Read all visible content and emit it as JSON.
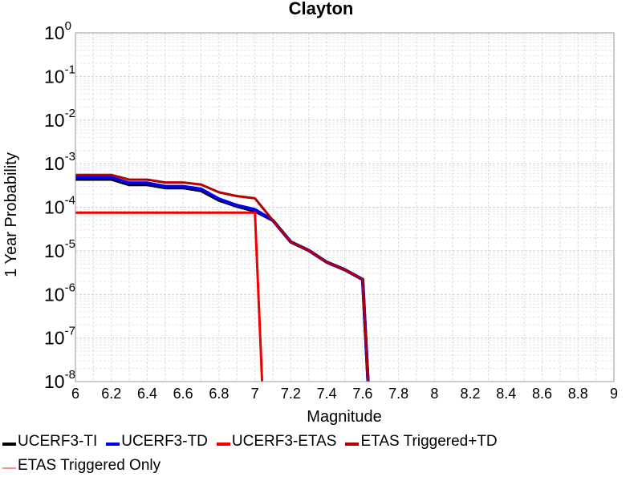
{
  "chart_data": {
    "type": "line",
    "title": "Clayton",
    "xlabel": "Magnitude",
    "ylabel": "1 Year Probability",
    "xlim": [
      6,
      9
    ],
    "ylim": [
      1e-08,
      1
    ],
    "yscale": "log",
    "grid": true,
    "legend_position": "bottom",
    "x_ticks": [
      "6",
      "6.2",
      "6.4",
      "6.6",
      "6.8",
      "7",
      "7.2",
      "7.4",
      "7.6",
      "7.8",
      "8",
      "8.2",
      "8.4",
      "8.6",
      "8.8",
      "9"
    ],
    "y_ticks": [
      {
        "value": 1.0,
        "base": "10",
        "exp": "0"
      },
      {
        "value": 0.1,
        "base": "10",
        "exp": "-1"
      },
      {
        "value": 0.01,
        "base": "10",
        "exp": "-2"
      },
      {
        "value": 0.001,
        "base": "10",
        "exp": "-3"
      },
      {
        "value": 0.0001,
        "base": "10",
        "exp": "-4"
      },
      {
        "value": 1e-05,
        "base": "10",
        "exp": "-5"
      },
      {
        "value": 1e-06,
        "base": "10",
        "exp": "-6"
      },
      {
        "value": 1e-07,
        "base": "10",
        "exp": "-7"
      },
      {
        "value": 1e-08,
        "base": "10",
        "exp": "-8"
      }
    ],
    "series": [
      {
        "name": "UCERF3-TI",
        "color": "#000000",
        "width": 4,
        "x": [
          6.0,
          6.1,
          6.2,
          6.3,
          6.4,
          6.5,
          6.6,
          6.7,
          6.8,
          6.9,
          7.0,
          7.1,
          7.2,
          7.3,
          7.4,
          7.5,
          7.6,
          7.63
        ],
        "y": [
          0.00044,
          0.00044,
          0.00044,
          0.00033,
          0.00033,
          0.00028,
          0.00028,
          0.00024,
          0.000145,
          0.000105,
          8.2e-05,
          5e-05,
          1.6e-05,
          1.02e-05,
          5.5e-06,
          3.7e-06,
          2.2e-06,
          1e-08
        ]
      },
      {
        "name": "UCERF3-TD",
        "color": "#0000ee",
        "width": 4,
        "x": [
          6.0,
          6.1,
          6.2,
          6.3,
          6.4,
          6.5,
          6.6,
          6.7,
          6.8,
          6.9,
          7.0,
          7.1,
          7.2,
          7.3,
          7.4,
          7.5,
          7.6,
          7.63
        ],
        "y": [
          0.00048,
          0.00048,
          0.00048,
          0.00036,
          0.00036,
          0.0003,
          0.0003,
          0.00026,
          0.000155,
          0.00011,
          8.8e-05,
          5e-05,
          1.6e-05,
          1.02e-05,
          5.5e-06,
          3.7e-06,
          2.2e-06,
          1e-08
        ]
      },
      {
        "name": "UCERF3-ETAS",
        "color": "#ee0000",
        "width": 3,
        "x": [
          6.0,
          6.1,
          6.2,
          6.3,
          6.4,
          6.5,
          6.6,
          6.7,
          6.8,
          6.9,
          7.0,
          7.04
        ],
        "y": [
          7.5e-05,
          7.5e-05,
          7.5e-05,
          7.5e-05,
          7.5e-05,
          7.5e-05,
          7.5e-05,
          7.5e-05,
          7.5e-05,
          7.5e-05,
          7.5e-05,
          1e-08
        ]
      },
      {
        "name": "ETAS Triggered+TD",
        "color": "#b00000",
        "width": 3,
        "x": [
          6.0,
          6.1,
          6.2,
          6.3,
          6.4,
          6.5,
          6.6,
          6.7,
          6.8,
          6.9,
          7.0,
          7.1,
          7.2,
          7.3,
          7.4,
          7.5,
          7.6,
          7.63
        ],
        "y": [
          0.00055,
          0.00055,
          0.00055,
          0.00043,
          0.00043,
          0.00037,
          0.00037,
          0.00033,
          0.00022,
          0.00018,
          0.00016,
          5e-05,
          1.6e-05,
          1.02e-05,
          5.5e-06,
          3.7e-06,
          2.2e-06,
          1e-08
        ]
      },
      {
        "name": "ETAS Triggered Only",
        "color": "#ff8c8c",
        "width": 2,
        "x": [],
        "y": []
      }
    ]
  }
}
